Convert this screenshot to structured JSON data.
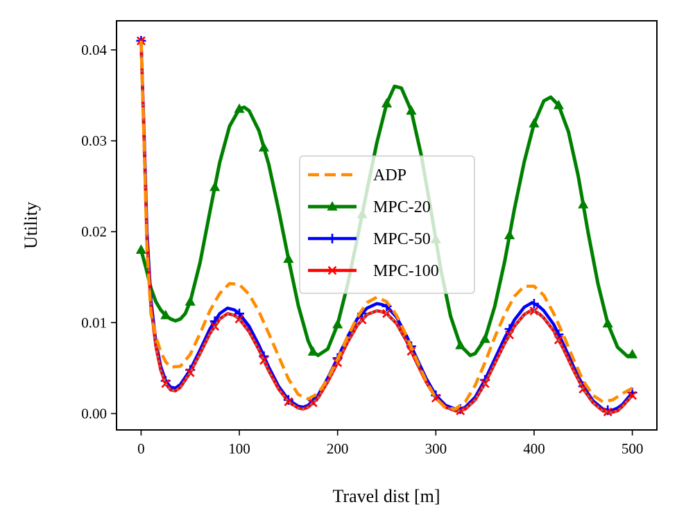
{
  "chart_data": {
    "type": "line",
    "xlabel": "Travel dist [m]",
    "ylabel": "Utility",
    "xlim": [
      -25,
      525
    ],
    "ylim": [
      -0.0018,
      0.0432
    ],
    "xticks": [
      0,
      100,
      200,
      300,
      400,
      500
    ],
    "xtick_labels": [
      "0",
      "100",
      "200",
      "300",
      "400",
      "500"
    ],
    "yticks": [
      0,
      0.01,
      0.02,
      0.03,
      0.04
    ],
    "ytick_labels": [
      "0.00",
      "0.01",
      "0.02",
      "0.03",
      "0.04"
    ],
    "grid": false,
    "legend": "center",
    "series": [
      {
        "name": "ADP",
        "color": "#ff8c00",
        "style": "dashed",
        "marker": "none",
        "x": [
          0,
          3,
          6,
          10,
          15,
          20,
          25,
          30,
          40,
          50,
          60,
          70,
          80,
          90,
          100,
          110,
          120,
          130,
          140,
          150,
          160,
          170,
          180,
          190,
          200,
          210,
          220,
          230,
          240,
          250,
          260,
          270,
          280,
          290,
          300,
          310,
          320,
          330,
          340,
          350,
          360,
          370,
          380,
          390,
          400,
          410,
          420,
          430,
          440,
          450,
          460,
          470,
          480,
          490,
          500
        ],
        "y": [
          0.041,
          0.03,
          0.018,
          0.011,
          0.0085,
          0.0068,
          0.0057,
          0.0051,
          0.0052,
          0.0065,
          0.0088,
          0.0113,
          0.0132,
          0.0143,
          0.0142,
          0.0131,
          0.0112,
          0.0088,
          0.0063,
          0.0038,
          0.0021,
          0.0016,
          0.0022,
          0.0038,
          0.006,
          0.0084,
          0.0106,
          0.0122,
          0.0128,
          0.0123,
          0.0108,
          0.0086,
          0.006,
          0.0036,
          0.0017,
          0.0006,
          0.0005,
          0.0013,
          0.0031,
          0.0056,
          0.0084,
          0.0109,
          0.0129,
          0.014,
          0.014,
          0.013,
          0.011,
          0.0086,
          0.006,
          0.0036,
          0.002,
          0.0013,
          0.0015,
          0.0022,
          0.0028
        ]
      },
      {
        "name": "MPC-20",
        "color": "#008000",
        "style": "solid",
        "marker": "triangle",
        "x": [
          0,
          5,
          10,
          15,
          20,
          25,
          30,
          35,
          40,
          45,
          50,
          60,
          70,
          80,
          90,
          100,
          105,
          110,
          120,
          130,
          140,
          150,
          160,
          170,
          175,
          180,
          190,
          200,
          210,
          220,
          230,
          240,
          250,
          258,
          265,
          275,
          285,
          295,
          305,
          315,
          325,
          335,
          340,
          350,
          360,
          370,
          380,
          390,
          400,
          410,
          417,
          425,
          435,
          445,
          455,
          465,
          475,
          485,
          495,
          500
        ],
        "y": [
          0.018,
          0.016,
          0.0138,
          0.0123,
          0.0114,
          0.0108,
          0.0104,
          0.0102,
          0.0104,
          0.011,
          0.0123,
          0.0166,
          0.0222,
          0.0276,
          0.0316,
          0.0335,
          0.0337,
          0.0333,
          0.0311,
          0.0274,
          0.0224,
          0.017,
          0.0119,
          0.008,
          0.0068,
          0.0064,
          0.0071,
          0.0098,
          0.0141,
          0.0192,
          0.0246,
          0.0298,
          0.0341,
          0.036,
          0.0358,
          0.0333,
          0.0285,
          0.0224,
          0.0159,
          0.0107,
          0.0075,
          0.0064,
          0.0066,
          0.0082,
          0.0118,
          0.0167,
          0.0225,
          0.0277,
          0.0319,
          0.0344,
          0.0348,
          0.0339,
          0.031,
          0.0261,
          0.0199,
          0.0143,
          0.0099,
          0.0073,
          0.0063,
          0.0065
        ]
      },
      {
        "name": "MPC-50",
        "color": "#0000ff",
        "style": "solid",
        "marker": "plus",
        "x": [
          0,
          3,
          6,
          10,
          15,
          20,
          25,
          30,
          35,
          40,
          50,
          60,
          70,
          80,
          88,
          95,
          100,
          110,
          120,
          130,
          140,
          150,
          160,
          165,
          170,
          180,
          190,
          200,
          210,
          220,
          230,
          240,
          245,
          250,
          260,
          270,
          280,
          290,
          300,
          310,
          320,
          325,
          330,
          340,
          350,
          360,
          370,
          380,
          390,
          398,
          405,
          410,
          420,
          430,
          440,
          450,
          460,
          470,
          478,
          485,
          490,
          500
        ],
        "y": [
          0.041,
          0.031,
          0.02,
          0.0125,
          0.0079,
          0.0052,
          0.0036,
          0.0029,
          0.0028,
          0.0032,
          0.0048,
          0.007,
          0.0093,
          0.011,
          0.0116,
          0.0114,
          0.011,
          0.0096,
          0.0075,
          0.0051,
          0.003,
          0.0015,
          0.0008,
          0.0007,
          0.0009,
          0.002,
          0.0039,
          0.0061,
          0.0084,
          0.0104,
          0.0116,
          0.0121,
          0.012,
          0.0118,
          0.0106,
          0.0086,
          0.0062,
          0.0039,
          0.002,
          0.0009,
          0.0005,
          0.0005,
          0.0007,
          0.0018,
          0.0037,
          0.006,
          0.0083,
          0.0103,
          0.0117,
          0.0122,
          0.0118,
          0.0113,
          0.0098,
          0.0076,
          0.0052,
          0.003,
          0.0014,
          0.0005,
          0.0003,
          0.0006,
          0.001,
          0.0023
        ]
      },
      {
        "name": "MPC-100",
        "color": "#ff0000",
        "style": "solid",
        "marker": "x",
        "x": [
          0,
          3,
          6,
          10,
          15,
          20,
          25,
          30,
          35,
          40,
          50,
          60,
          70,
          80,
          88,
          95,
          100,
          110,
          120,
          130,
          140,
          150,
          160,
          165,
          170,
          180,
          190,
          200,
          210,
          220,
          230,
          240,
          245,
          250,
          260,
          270,
          280,
          290,
          300,
          310,
          320,
          325,
          330,
          340,
          350,
          360,
          370,
          380,
          390,
          398,
          405,
          410,
          420,
          430,
          440,
          450,
          460,
          470,
          478,
          485,
          490,
          500
        ],
        "y": [
          0.041,
          0.03,
          0.019,
          0.0118,
          0.0074,
          0.0048,
          0.0033,
          0.0026,
          0.0025,
          0.0029,
          0.0045,
          0.0066,
          0.0088,
          0.0104,
          0.011,
          0.0108,
          0.0104,
          0.009,
          0.007,
          0.0047,
          0.0027,
          0.0013,
          0.0006,
          0.0005,
          0.0007,
          0.0017,
          0.0035,
          0.0056,
          0.0078,
          0.0097,
          0.0109,
          0.0113,
          0.0112,
          0.011,
          0.0099,
          0.008,
          0.0057,
          0.0035,
          0.0017,
          0.0007,
          0.0003,
          0.0003,
          0.0005,
          0.0015,
          0.0033,
          0.0055,
          0.0077,
          0.0096,
          0.0109,
          0.0114,
          0.011,
          0.0105,
          0.0091,
          0.0071,
          0.0048,
          0.0027,
          0.0012,
          0.0003,
          0.0001,
          0.0003,
          0.0008,
          0.002
        ]
      }
    ]
  }
}
